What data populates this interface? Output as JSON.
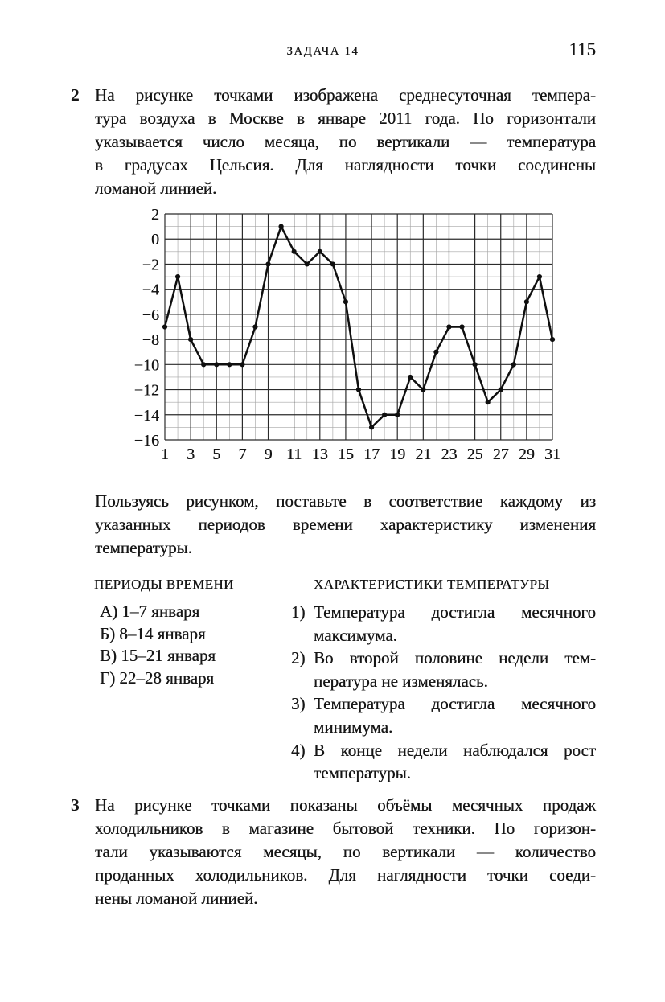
{
  "header": {
    "title": "ЗАДАЧА 14",
    "page_number": "115"
  },
  "problem2": {
    "number": "2",
    "lines": [
      "На рисунке точками изображена среднесуточная темпера-",
      "тура воздуха в Москве в январе 2011 года. По горизонтали",
      "указывается число месяца, по вертикали — температура",
      "в градусах Цельсия. Для наглядности точки соединены",
      "ломаной линией."
    ]
  },
  "chart_data": {
    "type": "line",
    "title": "",
    "xlabel": "",
    "ylabel": "",
    "x": [
      1,
      2,
      3,
      4,
      5,
      6,
      7,
      8,
      9,
      10,
      11,
      12,
      13,
      14,
      15,
      16,
      17,
      18,
      19,
      20,
      21,
      22,
      23,
      24,
      25,
      26,
      27,
      28,
      29,
      30,
      31
    ],
    "y": [
      -7,
      -3,
      -8,
      -10,
      -10,
      -10,
      -10,
      -7,
      -2,
      1,
      -1,
      -2,
      -1,
      -2,
      -5,
      -12,
      -15,
      -14,
      -14,
      -11,
      -12,
      -9,
      -7,
      -7,
      -10,
      -13,
      -12,
      -10,
      -5,
      -3,
      -8
    ],
    "xlim": [
      1,
      31
    ],
    "ylim": [
      -16,
      2
    ],
    "x_ticks": [
      1,
      3,
      5,
      7,
      9,
      11,
      13,
      15,
      17,
      19,
      21,
      23,
      25,
      27,
      29,
      31
    ],
    "x_tick_labels": [
      "1",
      "3",
      "5",
      "7",
      "9",
      "11",
      "13",
      "15",
      "17",
      "19",
      "21",
      "23",
      "25",
      "27",
      "29",
      "31"
    ],
    "y_ticks": [
      2,
      0,
      -2,
      -4,
      -6,
      -8,
      -10,
      -12,
      -14,
      -16
    ],
    "y_tick_labels": [
      "2",
      "0",
      "−2",
      "−4",
      "−6",
      "−8",
      "−10",
      "−12",
      "−14",
      "−16"
    ],
    "minor_grid_step_x": 1,
    "minor_grid_step_y": 1,
    "grid": true,
    "legend": false,
    "marker": "filled-dot",
    "colors": {
      "line": "#0f0f0f",
      "marker": "#0f0f0f",
      "grid_minor": "#a6a6a6",
      "grid_major": "#2b2b2b",
      "text": "#161616"
    }
  },
  "instruction": {
    "lines": [
      "Пользуясь рисунком, поставьте в соответствие каждому из",
      "указанных периодов времени характеристику изменения",
      "температуры."
    ]
  },
  "match": {
    "left_header": "ПЕРИОДЫ ВРЕМЕНИ",
    "right_header": "ХАРАКТЕРИСТИКИ ТЕМПЕРАТУРЫ",
    "periods": [
      {
        "label": "А)",
        "text": "1–7 января"
      },
      {
        "label": "Б)",
        "text": "8–14 января"
      },
      {
        "label": "В)",
        "text": "15–21 января"
      },
      {
        "label": "Г)",
        "text": "22–28 января"
      }
    ],
    "characteristics": [
      {
        "num": "1)",
        "lines": [
          "Температура достигла месячного",
          "максимума."
        ]
      },
      {
        "num": "2)",
        "lines": [
          "Во второй половине недели тем-",
          "пература не изменялась."
        ]
      },
      {
        "num": "3)",
        "lines": [
          "Температура достигла месячного",
          "минимума."
        ]
      },
      {
        "num": "4)",
        "lines": [
          "В конце недели наблюдался рост",
          "температуры."
        ]
      }
    ]
  },
  "problem3": {
    "number": "3",
    "lines": [
      "На рисунке точками показаны объёмы месячных продаж",
      "холодильников в магазине бытовой техники. По горизон-",
      "тали указываются месяцы, по вертикали — количество",
      "проданных холодильников. Для наглядности точки соеди-",
      "нены ломаной линией."
    ]
  }
}
